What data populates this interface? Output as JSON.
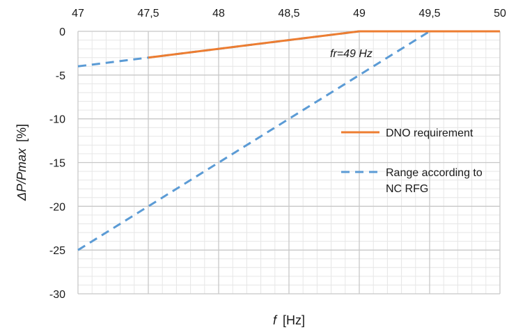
{
  "chart_data": {
    "type": "line",
    "xlabel_symbol": "f",
    "xlabel_unit": "[Hz]",
    "ylabel_symbol": "ΔP/Pmax",
    "ylabel_unit": "[%]",
    "x_axis_position": "top",
    "xlim": [
      47,
      50
    ],
    "ylim": [
      -30,
      0
    ],
    "x_ticks": [
      47,
      47.5,
      48,
      48.5,
      49,
      49.5,
      50
    ],
    "x_tick_labels": [
      "47",
      "47,5",
      "48",
      "48,5",
      "49",
      "49,5",
      "50"
    ],
    "y_ticks": [
      0,
      -5,
      -10,
      -15,
      -20,
      -25,
      -30
    ],
    "y_tick_labels": [
      "0",
      "-5",
      "-10",
      "-15",
      "-20",
      "-25",
      "-30"
    ],
    "grid": true,
    "minor_grid": true,
    "legend_position": "right",
    "annotation": "fr=49 Hz",
    "series": [
      {
        "name": "DNO requirement",
        "color": "#ed7d31",
        "dash": "solid",
        "lines": [
          {
            "x": [
              47.5,
              49,
              50
            ],
            "y": [
              -3,
              0,
              0
            ]
          }
        ]
      },
      {
        "name": "Range according to NC RFG",
        "legend_lines": [
          "Range according to",
          "NC RFG"
        ],
        "color": "#5b9bd5",
        "dash": "dashed",
        "lines": [
          {
            "x": [
              47,
              49,
              50
            ],
            "y": [
              -4,
              0,
              0
            ]
          },
          {
            "x": [
              47,
              49.5,
              50
            ],
            "y": [
              -25,
              0,
              0
            ]
          }
        ]
      }
    ]
  }
}
